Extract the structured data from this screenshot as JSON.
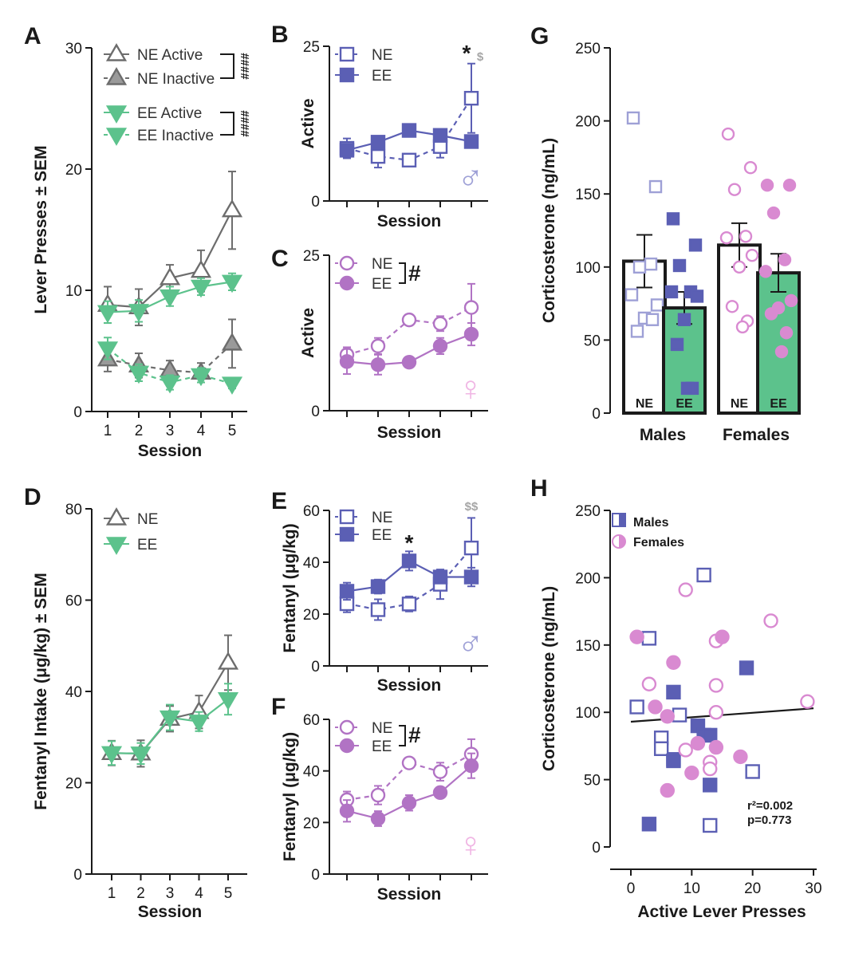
{
  "colors": {
    "ne_gray": "#6d6d6d",
    "ne_gray_fill": "#9a9a9a",
    "green": "#5cc28c",
    "blue": "#5b5fb4",
    "blue_light": "#9ea0d6",
    "purple": "#b173c4",
    "pink": "#d98ad1",
    "pink_light": "#f0b6e4",
    "bar_green": "#5cc28c",
    "dollar_gray": "#a6a6a6"
  },
  "chart_data": [
    {
      "id": "A",
      "panel_label": "A",
      "type": "line",
      "xlabel": "Session",
      "ylabel": "Lever Presses ± SEM",
      "x": [
        1,
        2,
        3,
        4,
        5
      ],
      "xticklabels": [
        "1",
        "2",
        "3",
        "4",
        "5"
      ],
      "ylim": [
        0,
        30
      ],
      "yticks": [
        0,
        10,
        20,
        30
      ],
      "yticklabels": [
        "0",
        "10",
        "20",
        "30"
      ],
      "legend": {
        "position": "top-right",
        "entries": [
          "NE Active",
          "NE Inactive",
          "EE Active",
          "EE Inactive"
        ]
      },
      "significance": [
        "####",
        "####"
      ],
      "series": [
        {
          "name": "NE Active",
          "values": [
            8.8,
            8.6,
            11.0,
            11.6,
            16.6
          ],
          "err": [
            1.5,
            1.5,
            1.1,
            1.7,
            3.2
          ],
          "marker": "triangle-up",
          "fill": "open",
          "dash": false,
          "color": "ne_gray"
        },
        {
          "name": "NE Inactive",
          "values": [
            4.3,
            3.8,
            3.4,
            3.2,
            5.6
          ],
          "err": [
            1.0,
            1.0,
            0.8,
            0.8,
            2.0
          ],
          "marker": "triangle-up",
          "fill": "filled",
          "dash": true,
          "color": "ne_gray"
        },
        {
          "name": "EE Active",
          "values": [
            8.2,
            8.3,
            9.5,
            10.3,
            10.7
          ],
          "err": [
            0.9,
            0.9,
            0.8,
            0.7,
            0.7
          ],
          "marker": "triangle-down",
          "fill": "filled",
          "dash": false,
          "color": "green"
        },
        {
          "name": "EE Inactive",
          "values": [
            5.2,
            3.2,
            2.4,
            3.0,
            2.3
          ],
          "err": [
            0.9,
            0.7,
            0.6,
            0.6,
            0.4
          ],
          "marker": "triangle-down",
          "fill": "filled",
          "dash": true,
          "color": "green"
        }
      ]
    },
    {
      "id": "B",
      "panel_label": "B",
      "type": "line",
      "xlabel": "Session",
      "ylabel": "Active",
      "x": [
        1,
        2,
        3,
        4,
        5
      ],
      "xticklabels": [],
      "ylim": [
        0,
        25
      ],
      "yticks": [
        0,
        25
      ],
      "yticklabels": [
        "0",
        "25"
      ],
      "legend": {
        "position": "top-left",
        "entries": [
          "NE",
          "EE"
        ]
      },
      "sex_symbol": "♂",
      "annotations": [
        {
          "text": "*",
          "x": 5
        },
        {
          "text": "$",
          "x": 5
        }
      ],
      "series": [
        {
          "name": "NE",
          "values": [
            8.5,
            7.2,
            6.6,
            8.8,
            16.6
          ],
          "err": [
            1.6,
            1.8,
            0.9,
            1.8,
            5.6
          ],
          "marker": "square",
          "fill": "open",
          "dash": true,
          "color": "blue"
        },
        {
          "name": "EE",
          "values": [
            8.2,
            9.5,
            11.4,
            10.6,
            9.6
          ],
          "err": [
            1.0,
            1.0,
            1.0,
            0.9,
            1.0
          ],
          "marker": "square",
          "fill": "filled",
          "dash": false,
          "color": "blue"
        }
      ]
    },
    {
      "id": "C",
      "panel_label": "C",
      "type": "line",
      "xlabel": "Session",
      "ylabel": "Active",
      "x": [
        1,
        2,
        3,
        4,
        5
      ],
      "xticklabels": [],
      "ylim": [
        0,
        25
      ],
      "yticks": [
        0,
        25
      ],
      "yticklabels": [
        "0",
        "25"
      ],
      "legend": {
        "position": "top-left",
        "entries": [
          "NE",
          "EE"
        ]
      },
      "significance": [
        "#"
      ],
      "sex_symbol": "♀",
      "series": [
        {
          "name": "NE",
          "values": [
            9.0,
            10.4,
            14.6,
            14.0,
            16.6
          ],
          "err": [
            1.2,
            1.3,
            0.8,
            1.2,
            3.8
          ],
          "marker": "circle",
          "fill": "open",
          "dash": true,
          "color": "purple"
        },
        {
          "name": "EE",
          "values": [
            7.9,
            7.4,
            7.8,
            10.4,
            12.3
          ],
          "err": [
            2.0,
            1.6,
            0.6,
            1.3,
            1.8
          ],
          "marker": "circle",
          "fill": "filled",
          "dash": false,
          "color": "purple"
        }
      ]
    },
    {
      "id": "D",
      "panel_label": "D",
      "type": "line",
      "xlabel": "Session",
      "ylabel": "Fentanyl Intake (μg/kg) ± SEM",
      "x": [
        1,
        2,
        3,
        4,
        5
      ],
      "xticklabels": [
        "1",
        "2",
        "3",
        "4",
        "5"
      ],
      "ylim": [
        0,
        80
      ],
      "yticks": [
        0,
        20,
        40,
        60,
        80
      ],
      "yticklabels": [
        "0",
        "20",
        "40",
        "60",
        "80"
      ],
      "legend": {
        "position": "top-right",
        "entries": [
          "NE",
          "EE"
        ]
      },
      "series": [
        {
          "name": "NE",
          "values": [
            26.5,
            26.4,
            34.0,
            35.5,
            46.3
          ],
          "err": [
            2.7,
            2.9,
            2.8,
            3.6,
            6.0
          ],
          "marker": "triangle-up",
          "fill": "open",
          "dash": false,
          "color": "ne_gray"
        },
        {
          "name": "EE",
          "values": [
            26.5,
            26.4,
            34.3,
            33.4,
            38.3
          ],
          "err": [
            2.6,
            2.3,
            2.8,
            2.1,
            3.4
          ],
          "marker": "triangle-down",
          "fill": "filled",
          "dash": false,
          "color": "green"
        }
      ]
    },
    {
      "id": "E",
      "panel_label": "E",
      "type": "line",
      "xlabel": "Session",
      "ylabel": "Fentanyl (μg/kg)",
      "x": [
        1,
        2,
        3,
        4,
        5
      ],
      "xticklabels": [],
      "ylim": [
        0,
        60
      ],
      "yticks": [
        0,
        20,
        40,
        60
      ],
      "yticklabels": [
        "0",
        "20",
        "40",
        "60"
      ],
      "legend": {
        "position": "top-left",
        "entries": [
          "NE",
          "EE"
        ]
      },
      "annotations": [
        {
          "text": "*",
          "x": 3
        },
        {
          "text": "$$",
          "x": 5
        }
      ],
      "sex_symbol": "♂",
      "series": [
        {
          "name": "NE",
          "values": [
            24.0,
            21.7,
            23.9,
            31.5,
            45.5
          ],
          "err": [
            3.3,
            4.0,
            2.9,
            5.7,
            11.6
          ],
          "marker": "square",
          "fill": "open",
          "dash": true,
          "color": "blue"
        },
        {
          "name": "EE",
          "values": [
            28.8,
            30.6,
            40.5,
            34.3,
            34.3
          ],
          "err": [
            3.3,
            2.7,
            3.7,
            2.4,
            3.6
          ],
          "marker": "square",
          "fill": "filled",
          "dash": false,
          "color": "blue"
        }
      ]
    },
    {
      "id": "F",
      "panel_label": "F",
      "type": "line",
      "xlabel": "Session",
      "ylabel": "Fentanyl (μg/kg)",
      "x": [
        1,
        2,
        3,
        4,
        5
      ],
      "xticklabels": [],
      "ylim": [
        0,
        60
      ],
      "yticks": [
        0,
        20,
        40,
        60
      ],
      "yticklabels": [
        "0",
        "20",
        "40",
        "60"
      ],
      "legend": {
        "position": "top-left",
        "entries": [
          "NE",
          "EE"
        ]
      },
      "significance": [
        "#"
      ],
      "sex_symbol": "♀",
      "series": [
        {
          "name": "NE",
          "values": [
            28.8,
            30.6,
            43.1,
            39.7,
            46.5
          ],
          "err": [
            3.2,
            3.6,
            1.6,
            3.5,
            5.8
          ],
          "marker": "circle",
          "fill": "open",
          "dash": true,
          "color": "purple"
        },
        {
          "name": "EE",
          "values": [
            24.5,
            21.5,
            27.6,
            31.6,
            42.0
          ],
          "err": [
            4.2,
            2.9,
            3.0,
            1.5,
            4.8
          ],
          "marker": "circle",
          "fill": "filled",
          "dash": false,
          "color": "purple"
        }
      ]
    },
    {
      "id": "G",
      "panel_label": "G",
      "type": "bar",
      "ylabel": "Corticosterone (ng/mL)",
      "ylim": [
        0,
        250
      ],
      "yticks": [
        0,
        50,
        100,
        150,
        200,
        250
      ],
      "yticklabels": [
        "0",
        "50",
        "100",
        "150",
        "200",
        "250"
      ],
      "group_labels": [
        "Males",
        "Females"
      ],
      "bars": [
        {
          "group": "Males",
          "label": "NE",
          "value": 104,
          "err": 18,
          "fill": "open",
          "points": [
            202,
            155,
            100,
            102,
            81,
            74,
            65,
            56,
            64
          ]
        },
        {
          "group": "Males",
          "label": "EE",
          "value": 72,
          "err": 11,
          "fill": "green",
          "points": [
            133,
            115,
            101,
            83,
            83,
            80,
            64,
            47,
            17,
            17
          ]
        },
        {
          "group": "Females",
          "label": "NE",
          "value": 115,
          "err": 15,
          "fill": "open",
          "points": [
            191,
            168,
            153,
            121,
            120,
            108,
            100,
            73,
            63,
            59
          ]
        },
        {
          "group": "Females",
          "label": "EE",
          "value": 96,
          "err": 13,
          "fill": "green",
          "points": [
            156,
            156,
            137,
            105,
            97,
            77,
            72,
            68,
            55,
            42
          ]
        }
      ]
    },
    {
      "id": "H",
      "panel_label": "H",
      "type": "scatter",
      "xlabel": "Active Lever Presses",
      "ylabel": "Corticosterone (ng/mL)",
      "xlim": [
        0,
        30
      ],
      "xticks": [
        0,
        10,
        20,
        30
      ],
      "xticklabels": [
        "0",
        "10",
        "20",
        "30"
      ],
      "ylim": [
        0,
        250
      ],
      "yticks": [
        0,
        50,
        100,
        150,
        200,
        250
      ],
      "yticklabels": [
        "0",
        "50",
        "100",
        "150",
        "200",
        "250"
      ],
      "legend": {
        "position": "top-left",
        "entries": [
          "Males",
          "Females"
        ]
      },
      "stats": {
        "r2": "r²=0.002",
        "p": "p=0.773"
      },
      "regression": {
        "x": [
          0,
          30
        ],
        "y": [
          93,
          103
        ]
      },
      "series": [
        {
          "name": "Males NE",
          "marker": "square",
          "fill": "open",
          "color": "blue",
          "x": [
            3,
            12,
            1,
            7,
            5,
            5,
            8,
            13,
            20
          ],
          "y": [
            155,
            202,
            104,
            65,
            81,
            73,
            98,
            16,
            56
          ]
        },
        {
          "name": "Males EE",
          "marker": "square",
          "fill": "filled",
          "color": "blue",
          "x": [
            19,
            7,
            11,
            12,
            13,
            7,
            13,
            3
          ],
          "y": [
            133,
            115,
            90,
            83,
            83,
            64,
            46,
            17
          ]
        },
        {
          "name": "Females NE",
          "marker": "circle",
          "fill": "open",
          "color": "pink",
          "x": [
            9,
            23,
            14,
            3,
            14,
            14,
            29,
            9,
            13,
            13
          ],
          "y": [
            191,
            168,
            153,
            121,
            120,
            100,
            108,
            72,
            63,
            58
          ]
        },
        {
          "name": "Females EE",
          "marker": "circle",
          "fill": "filled",
          "color": "pink",
          "x": [
            1,
            7,
            15,
            4,
            6,
            11,
            14,
            18,
            10,
            6
          ],
          "y": [
            156,
            137,
            156,
            104,
            97,
            77,
            74,
            67,
            55,
            42
          ]
        }
      ]
    }
  ]
}
